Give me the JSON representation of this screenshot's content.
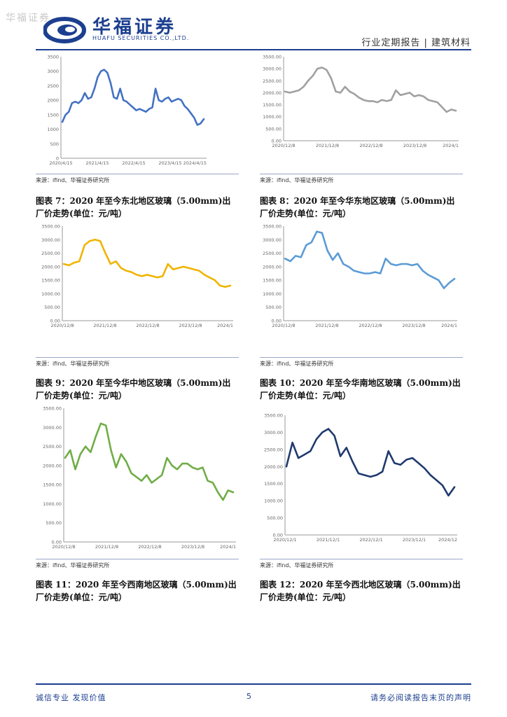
{
  "header": {
    "watermark": "华福证券",
    "brand_cn": "华福证券",
    "brand_en": "HUAFU SECURITIES CO.,LTD.",
    "report_type": "行业定期报告 | 建筑材料",
    "brand_color": "#1c3f8f"
  },
  "charts": [
    {
      "source": "来源：ifind、华福证券研究所",
      "caption": "图表 7：2020 年至今东北地区玻璃（5.00mm)出厂价走势(单位：元/吨）"
    },
    {
      "source": "来源：ifind、华福证券研究所",
      "caption": "图表 8：2020 年至今华东地区玻璃（5.00mm)出厂价走势(单位：元/吨）"
    },
    {
      "source": "来源：ifind、华福证券研究所",
      "caption": "图表 9：2020 年至今华中地区玻璃（5.00mm)出厂价走势(单位：元/吨）"
    },
    {
      "source": "来源：ifind、华福证券研究所",
      "caption": "图表 10：2020 年至今华南地区玻璃（5.00mm)出厂价走势(单位：元/吨）"
    },
    {
      "source": "来源：ifind、华福证券研究所",
      "caption": "图表 11：2020 年至今西南地区玻璃（5.00mm)出厂价走势(单位：元/吨）"
    },
    {
      "source": "来源：ifind、华福证券研究所",
      "caption": "图表 12：2020 年至今西北地区玻璃（5.00mm)出厂价走势(单位：元/吨）"
    }
  ],
  "chart_data": [
    {
      "type": "line",
      "color": "#4472c4",
      "y_ticks": [
        "0",
        "500",
        "1000",
        "1500",
        "2000",
        "2500",
        "3000",
        "3500"
      ],
      "ylim": [
        0,
        3500
      ],
      "x_ticks": [
        "2020/4/15",
        "2021/4/15",
        "2022/4/15",
        "2023/4/15",
        "2024/4/15"
      ],
      "values": [
        1250,
        1500,
        1600,
        1900,
        1950,
        1900,
        2000,
        2250,
        2050,
        2100,
        2400,
        2800,
        3000,
        3050,
        2950,
        2600,
        2100,
        2050,
        2400,
        2000,
        1950,
        1850,
        1750,
        1650,
        1700,
        1650,
        1600,
        1700,
        1750,
        2400,
        2000,
        1950,
        2050,
        2100,
        1950,
        2000,
        2050,
        2000,
        1800,
        1700,
        1550,
        1400,
        1150,
        1200,
        1350
      ]
    },
    {
      "type": "line",
      "color": "#a0a0a0",
      "y_ticks": [
        "0.00",
        "500.00",
        "1000.00",
        "1500.00",
        "2000.00",
        "2500.00",
        "3000.00",
        "3500.00"
      ],
      "ylim": [
        0,
        3500
      ],
      "x_ticks": [
        "2020/12/8",
        "2021/12/8",
        "2022/12/8",
        "2023/12/8",
        "2024/1"
      ],
      "values": [
        2050,
        2000,
        2050,
        2100,
        2250,
        2500,
        2700,
        3000,
        3050,
        2950,
        2600,
        2050,
        2000,
        2250,
        2050,
        1950,
        1800,
        1700,
        1650,
        1650,
        1600,
        1700,
        1650,
        1700,
        2100,
        1900,
        1950,
        2000,
        1850,
        1900,
        1850,
        1700,
        1650,
        1600,
        1400,
        1200,
        1300,
        1250
      ]
    },
    {
      "type": "line",
      "color": "#f0b400",
      "y_ticks": [
        "0.00",
        "500.00",
        "1000.00",
        "1500.00",
        "2000.00",
        "2500.00",
        "3000.00",
        "3500.00"
      ],
      "ylim": [
        0,
        3500
      ],
      "x_ticks": [
        "2020/12/8",
        "2021/12/8",
        "2022/12/8",
        "2023/12/8",
        "2024/1"
      ],
      "values": [
        2100,
        2050,
        2150,
        2200,
        2800,
        2950,
        3000,
        2950,
        2500,
        2100,
        2200,
        1950,
        1850,
        1800,
        1700,
        1650,
        1700,
        1650,
        1600,
        1650,
        2100,
        1900,
        1950,
        2000,
        1950,
        1900,
        1850,
        1700,
        1600,
        1500,
        1300,
        1250,
        1300
      ]
    },
    {
      "type": "line",
      "color": "#5b9bd5",
      "y_ticks": [
        "0.00",
        "500.00",
        "1000.00",
        "1500.00",
        "2000.00",
        "2500.00",
        "3000.00",
        "3500.00"
      ],
      "ylim": [
        0,
        3500
      ],
      "x_ticks": [
        "2020/12/8",
        "2021/12/8",
        "2022/12/8",
        "2023/12/8",
        "2024/1"
      ],
      "values": [
        2300,
        2200,
        2400,
        2350,
        2800,
        2900,
        3300,
        3250,
        2600,
        2250,
        2500,
        2100,
        2000,
        1850,
        1800,
        1750,
        1750,
        1800,
        1750,
        2300,
        2100,
        2050,
        2100,
        2100,
        2050,
        2100,
        1850,
        1700,
        1600,
        1500,
        1200,
        1400,
        1550
      ]
    },
    {
      "type": "line",
      "color": "#70ad47",
      "y_ticks": [
        "0.00",
        "500.00",
        "1000.00",
        "1500.00",
        "2000.00",
        "2500.00",
        "3000.00",
        "3500.00"
      ],
      "ylim": [
        0,
        3500
      ],
      "x_ticks": [
        "2020/12/8",
        "2021/12/8",
        "2022/12/8",
        "2023/12/8",
        "2024/1"
      ],
      "values": [
        2200,
        2400,
        1900,
        2300,
        2500,
        2350,
        2750,
        3100,
        3050,
        2400,
        1950,
        2300,
        2100,
        1800,
        1700,
        1600,
        1750,
        1550,
        1650,
        1750,
        2200,
        2000,
        1900,
        2050,
        2050,
        1950,
        1900,
        1950,
        1600,
        1550,
        1300,
        1100,
        1350,
        1300
      ]
    },
    {
      "type": "line",
      "color": "#1f3a6e",
      "y_ticks": [
        "0.00",
        "500.00",
        "1000.00",
        "1500.00",
        "2000.00",
        "2500.00",
        "3000.00",
        "3500.00"
      ],
      "ylim": [
        0,
        3500
      ],
      "x_ticks": [
        "2020/12/1",
        "2021/12/1",
        "2022/12/1",
        "2023/12/1",
        "2024/12"
      ],
      "values": [
        2000,
        2700,
        2250,
        2350,
        2450,
        2800,
        3000,
        3100,
        2900,
        2300,
        2550,
        2150,
        1800,
        1750,
        1700,
        1750,
        1850,
        2450,
        2100,
        2050,
        2200,
        2250,
        2100,
        1950,
        1750,
        1600,
        1450,
        1150,
        1400
      ]
    }
  ],
  "footer": {
    "left": "诚信专业  发现价值",
    "page": "5",
    "right": "请务必阅读报告末页的声明"
  }
}
